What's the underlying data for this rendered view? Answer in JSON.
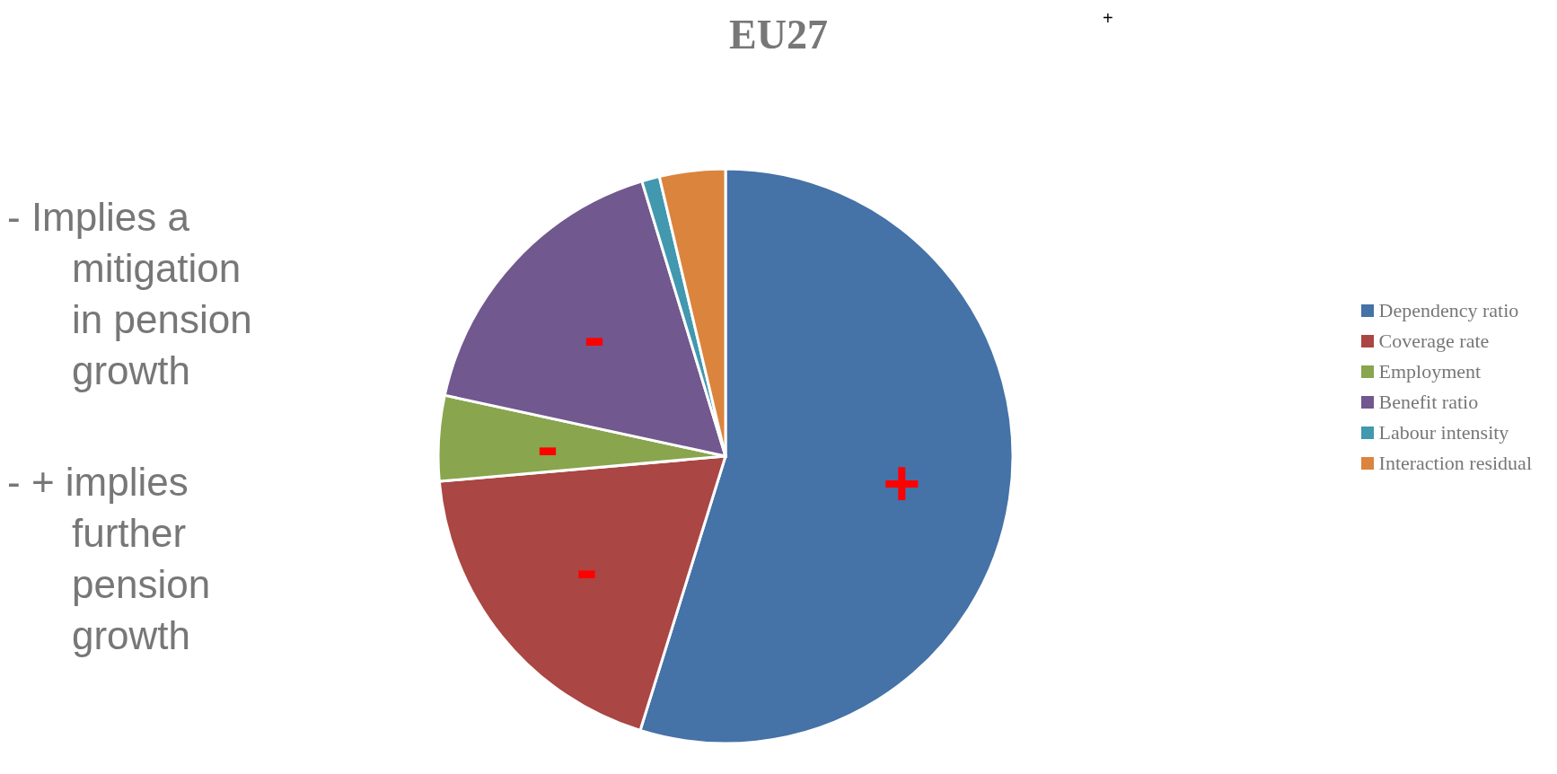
{
  "chart_data": {
    "type": "pie",
    "title": "EU27",
    "categories": [
      "Dependency ratio",
      "Coverage rate",
      "Employment",
      "Benefit ratio",
      "Labour intensity",
      "Interaction residual"
    ],
    "values": [
      54.8,
      18.8,
      4.8,
      16.9,
      1.0,
      3.7
    ],
    "colors": [
      "#4572a7",
      "#aa4643",
      "#89a54e",
      "#71588f",
      "#4198af",
      "#db843d"
    ],
    "value_labels": [
      "+",
      "-",
      "-",
      "-",
      null,
      null
    ],
    "legend": "right",
    "annotations": [
      "- Implies a mitigation in pension growth",
      "- + implies further pension growth",
      "+"
    ]
  }
}
